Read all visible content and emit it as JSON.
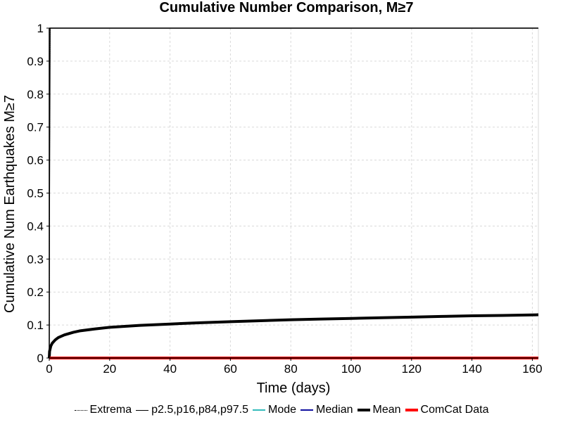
{
  "chart_data": {
    "type": "line",
    "title": "Cumulative Number Comparison, M≥7",
    "xlabel": "Time (days)",
    "ylabel": "Cumulative Num Earthquakes M≥7",
    "xlim": [
      0,
      162
    ],
    "ylim": [
      0,
      1
    ],
    "xticks": [
      0,
      20,
      40,
      60,
      80,
      100,
      120,
      140,
      160
    ],
    "yticks": [
      0,
      0.1,
      0.2,
      0.3,
      0.4,
      0.5,
      0.6,
      0.7,
      0.8,
      0.9,
      1
    ],
    "grid": true,
    "legend_position": "bottom",
    "series": [
      {
        "name": "Extrema",
        "color": "#000000",
        "style": "dotted",
        "x": [
          0,
          0.02,
          0.1,
          0.3,
          0.6,
          162
        ],
        "y": [
          0,
          0.2,
          0.6,
          1,
          1,
          1
        ]
      },
      {
        "name": "p2.5,p16,p84,p97.5",
        "color": "#000000",
        "style": "thin",
        "x": [
          0,
          0.02,
          0.1,
          0.3,
          162
        ],
        "y": [
          0,
          0.15,
          0.5,
          1,
          1
        ]
      },
      {
        "name": "Mode",
        "color": "#33bbbb",
        "style": "solid",
        "x": [
          0,
          162
        ],
        "y": [
          0,
          0
        ]
      },
      {
        "name": "Median",
        "color": "#1010a0",
        "style": "solid",
        "x": [
          0,
          162
        ],
        "y": [
          0,
          0
        ]
      },
      {
        "name": "Mean",
        "color": "#000000",
        "style": "thick",
        "x": [
          0,
          0.1,
          0.5,
          1,
          2,
          3,
          5,
          8,
          10,
          15,
          20,
          30,
          40,
          50,
          60,
          70,
          80,
          90,
          100,
          110,
          120,
          130,
          140,
          150,
          162
        ],
        "y": [
          0,
          0.02,
          0.036,
          0.045,
          0.055,
          0.062,
          0.07,
          0.078,
          0.082,
          0.088,
          0.093,
          0.099,
          0.103,
          0.107,
          0.11,
          0.113,
          0.116,
          0.118,
          0.12,
          0.122,
          0.124,
          0.126,
          0.128,
          0.129,
          0.131
        ]
      },
      {
        "name": "ComCat Data",
        "color": "#ff0000",
        "style": "thick",
        "x": [
          0,
          162
        ],
        "y": [
          0,
          0
        ]
      }
    ]
  }
}
